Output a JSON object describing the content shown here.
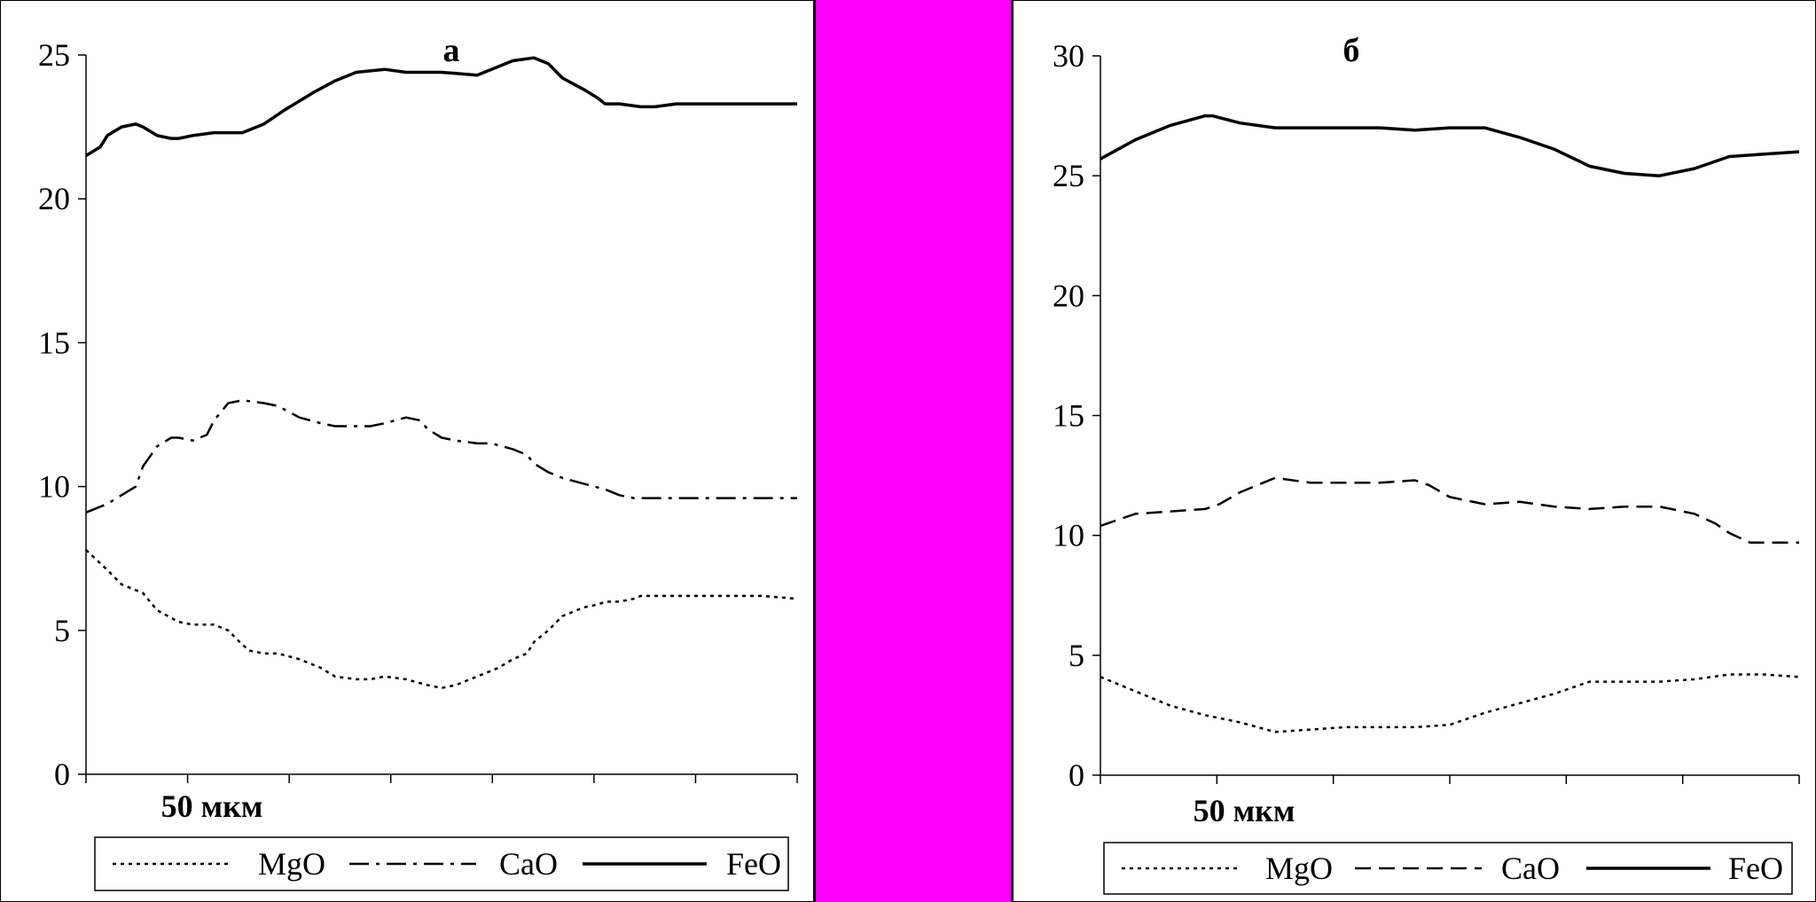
{
  "separator_color": "#ff00ff",
  "chart_data": [
    {
      "type": "line",
      "title": "а",
      "scale_label": "50 мкм",
      "yticks": [
        "0",
        "5",
        "10",
        "15",
        "20",
        "25"
      ],
      "ylim": [
        0,
        25
      ],
      "xlim": [
        0,
        100
      ],
      "grid": false,
      "legend": "bottom",
      "series": [
        {
          "name": "MgO",
          "style": "dotted",
          "x": [
            0,
            3,
            5,
            8,
            10,
            13,
            15,
            18,
            20,
            22,
            23,
            25,
            27,
            30,
            33,
            35,
            38,
            40,
            42,
            45,
            48,
            50,
            52,
            55,
            58,
            60,
            62,
            63,
            65,
            67,
            70,
            72,
            73,
            75,
            77,
            78,
            80,
            83,
            85,
            88,
            90,
            93,
            95,
            100
          ],
          "y": [
            7.8,
            7.1,
            6.6,
            6.3,
            5.7,
            5.3,
            5.2,
            5.2,
            5.0,
            4.5,
            4.3,
            4.2,
            4.2,
            4.0,
            3.7,
            3.4,
            3.3,
            3.3,
            3.4,
            3.3,
            3.1,
            3.0,
            3.1,
            3.4,
            3.7,
            4.0,
            4.2,
            4.6,
            5.0,
            5.5,
            5.8,
            5.9,
            6.0,
            6.0,
            6.1,
            6.2,
            6.2,
            6.2,
            6.2,
            6.2,
            6.2,
            6.2,
            6.2,
            6.1
          ]
        },
        {
          "name": "CaO",
          "style": "dashdot",
          "x": [
            0,
            3,
            5,
            7,
            8,
            10,
            12,
            13,
            15,
            17,
            18,
            20,
            22,
            25,
            27,
            30,
            33,
            35,
            37,
            40,
            42,
            45,
            47,
            48,
            50,
            52,
            55,
            57,
            60,
            62,
            63,
            65,
            67,
            70,
            73,
            75,
            77,
            78,
            80,
            83,
            85,
            88,
            90,
            93,
            95,
            100
          ],
          "y": [
            9.1,
            9.4,
            9.7,
            10.0,
            10.7,
            11.4,
            11.7,
            11.7,
            11.6,
            11.8,
            12.3,
            12.9,
            13.0,
            12.9,
            12.8,
            12.4,
            12.2,
            12.1,
            12.1,
            12.1,
            12.2,
            12.4,
            12.3,
            12.0,
            11.7,
            11.6,
            11.5,
            11.5,
            11.3,
            11.1,
            10.8,
            10.5,
            10.3,
            10.1,
            9.9,
            9.7,
            9.6,
            9.6,
            9.6,
            9.6,
            9.6,
            9.6,
            9.6,
            9.6,
            9.6,
            9.6
          ]
        },
        {
          "name": "FeO",
          "style": "solid",
          "x": [
            0,
            2,
            3,
            5,
            7,
            8,
            10,
            12,
            13,
            15,
            18,
            20,
            22,
            25,
            28,
            32,
            35,
            38,
            42,
            45,
            50,
            55,
            58,
            60,
            63,
            65,
            67,
            70,
            72,
            73,
            75,
            78,
            80,
            83,
            85,
            88,
            90,
            93,
            95,
            100
          ],
          "y": [
            21.5,
            21.8,
            22.2,
            22.5,
            22.6,
            22.5,
            22.2,
            22.1,
            22.1,
            22.2,
            22.3,
            22.3,
            22.3,
            22.6,
            23.1,
            23.7,
            24.1,
            24.4,
            24.5,
            24.4,
            24.4,
            24.3,
            24.6,
            24.8,
            24.9,
            24.7,
            24.2,
            23.8,
            23.5,
            23.3,
            23.3,
            23.2,
            23.2,
            23.3,
            23.3,
            23.3,
            23.3,
            23.3,
            23.3,
            23.3
          ]
        }
      ]
    },
    {
      "type": "line",
      "title": "б",
      "scale_label": "50 мкм",
      "yticks": [
        "0",
        "5",
        "10",
        "15",
        "20",
        "25",
        "30"
      ],
      "ylim": [
        0,
        30
      ],
      "xlim": [
        0,
        100
      ],
      "grid": false,
      "legend": "bottom",
      "series": [
        {
          "name": "MgO",
          "style": "dotted",
          "x": [
            0,
            5,
            10,
            15,
            20,
            25,
            30,
            35,
            40,
            45,
            50,
            55,
            60,
            65,
            70,
            75,
            80,
            85,
            90,
            95,
            100
          ],
          "y": [
            4.1,
            3.5,
            2.9,
            2.5,
            2.2,
            1.8,
            1.9,
            2.0,
            2.0,
            2.0,
            2.1,
            2.6,
            3.0,
            3.4,
            3.9,
            3.9,
            3.9,
            4.0,
            4.2,
            4.2,
            4.1
          ]
        },
        {
          "name": "CaO",
          "style": "dashed",
          "x": [
            0,
            5,
            10,
            15,
            17,
            20,
            25,
            30,
            35,
            40,
            45,
            47,
            50,
            55,
            60,
            65,
            70,
            75,
            80,
            85,
            88,
            90,
            93,
            95,
            100
          ],
          "y": [
            10.4,
            10.9,
            11.0,
            11.1,
            11.3,
            11.8,
            12.4,
            12.2,
            12.2,
            12.2,
            12.3,
            12.1,
            11.6,
            11.3,
            11.4,
            11.2,
            11.1,
            11.2,
            11.2,
            10.9,
            10.5,
            10.1,
            9.7,
            9.7,
            9.7
          ]
        },
        {
          "name": "FeO",
          "style": "solid",
          "x": [
            0,
            5,
            10,
            15,
            16,
            20,
            25,
            30,
            35,
            40,
            45,
            50,
            55,
            60,
            65,
            70,
            75,
            80,
            85,
            90,
            95,
            100
          ],
          "y": [
            25.7,
            26.5,
            27.1,
            27.5,
            27.5,
            27.2,
            27.0,
            27.0,
            27.0,
            27.0,
            26.9,
            27.0,
            27.0,
            26.6,
            26.1,
            25.4,
            25.1,
            25.0,
            25.3,
            25.8,
            25.9,
            26.0
          ]
        }
      ]
    }
  ]
}
